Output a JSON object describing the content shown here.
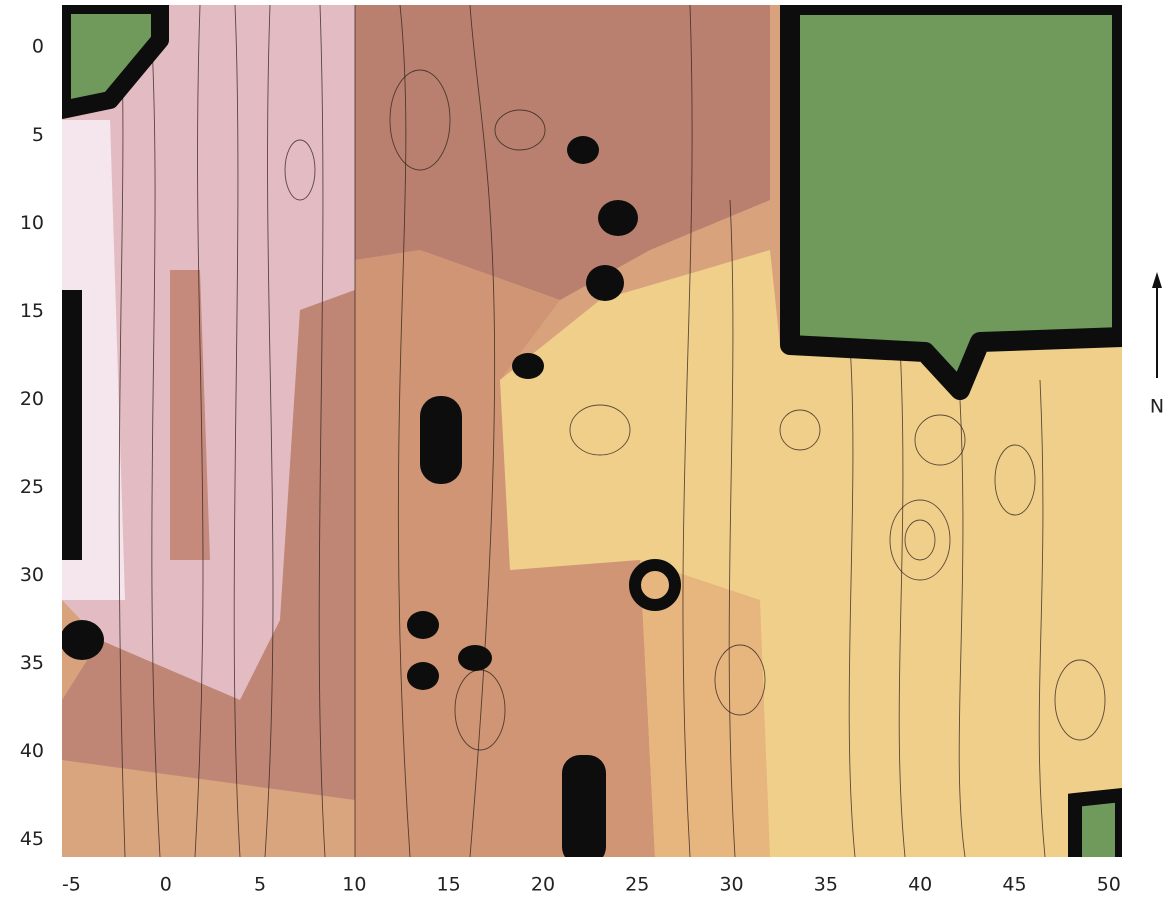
{
  "chart_data": {
    "type": "map",
    "xlim": [
      -5.5,
      50.7
    ],
    "ylim": [
      -2.4,
      46
    ],
    "xticks": [
      -5,
      0,
      5,
      10,
      15,
      20,
      25,
      30,
      35,
      40,
      45,
      50
    ],
    "yticks": [
      0,
      5,
      10,
      15,
      20,
      25,
      30,
      35,
      40,
      45
    ],
    "north_label": "N"
  }
}
